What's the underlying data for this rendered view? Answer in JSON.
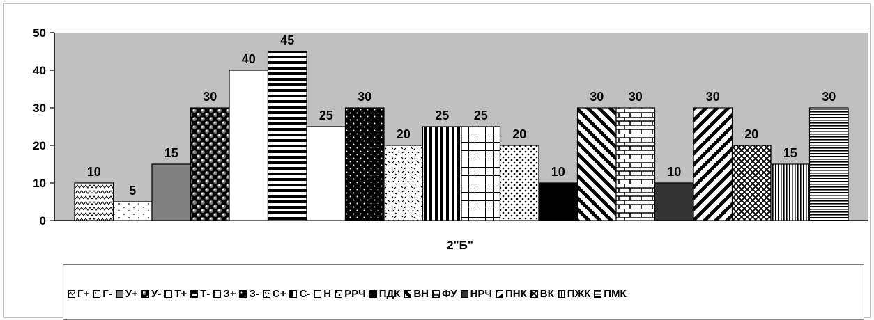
{
  "chart_data": {
    "type": "bar",
    "xlabel": "2\"Б\"",
    "ylim": [
      0,
      50
    ],
    "yticks": [
      0,
      10,
      20,
      30,
      40,
      50
    ],
    "grid": false,
    "plot_background": "#c0c0c0",
    "legend_position": "bottom",
    "series": [
      {
        "name": "Г+",
        "values": [
          10
        ],
        "fill": "zigzag"
      },
      {
        "name": "Г-",
        "values": [
          5
        ],
        "fill": "sparse-dots"
      },
      {
        "name": "У+",
        "values": [
          15
        ],
        "fill": "solid-gray"
      },
      {
        "name": "У-",
        "values": [
          30
        ],
        "fill": "spheres"
      },
      {
        "name": "Т+",
        "values": [
          40
        ],
        "fill": "solid-white"
      },
      {
        "name": "Т-",
        "values": [
          45
        ],
        "fill": "horizontal-stripes"
      },
      {
        "name": "З+",
        "values": [
          25
        ],
        "fill": "solid-white"
      },
      {
        "name": "З-",
        "values": [
          30
        ],
        "fill": "dots-on-black"
      },
      {
        "name": "С+",
        "values": [
          20
        ],
        "fill": "confetti"
      },
      {
        "name": "С-",
        "values": [
          25
        ],
        "fill": "vertical-stripes"
      },
      {
        "name": "Н",
        "values": [
          25
        ],
        "fill": "grid"
      },
      {
        "name": "РРЧ",
        "values": [
          20
        ],
        "fill": "dense-dots"
      },
      {
        "name": "ПДК",
        "values": [
          10
        ],
        "fill": "solid-black"
      },
      {
        "name": "ВН",
        "values": [
          30
        ],
        "fill": "diagonal-down"
      },
      {
        "name": "ФУ",
        "values": [
          30
        ],
        "fill": "bricks"
      },
      {
        "name": "НРЧ",
        "values": [
          10
        ],
        "fill": "solid-dark"
      },
      {
        "name": "ПНК",
        "values": [
          30
        ],
        "fill": "diagonal-up"
      },
      {
        "name": "ВК",
        "values": [
          20
        ],
        "fill": "crosshatch"
      },
      {
        "name": "ПЖК",
        "values": [
          15
        ],
        "fill": "fine-vertical"
      },
      {
        "name": "ПМК",
        "values": [
          30
        ],
        "fill": "fine-horizontal"
      }
    ]
  }
}
